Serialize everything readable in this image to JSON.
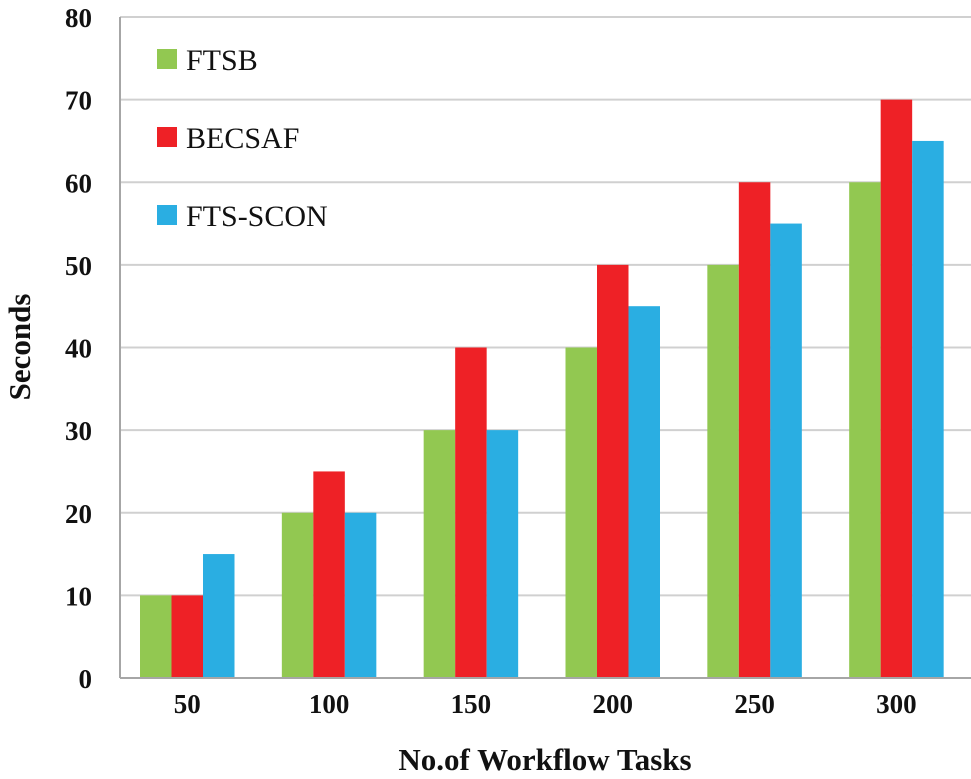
{
  "chart_data": {
    "type": "bar",
    "title": "",
    "xlabel": "No.of Workflow Tasks",
    "ylabel": "Seconds",
    "categories": [
      "50",
      "100",
      "150",
      "200",
      "250",
      "300"
    ],
    "ylim": [
      0,
      80
    ],
    "yticks": [
      "0",
      "10",
      "20",
      "30",
      "40",
      "50",
      "60",
      "70",
      "80"
    ],
    "ytick_values": [
      0,
      10,
      20,
      30,
      40,
      50,
      60,
      70,
      80
    ],
    "grid": true,
    "legend_position": "top-left",
    "series": [
      {
        "name": "FTSB",
        "color": "#92c851",
        "values": [
          10,
          20,
          30,
          40,
          50,
          60
        ]
      },
      {
        "name": "BECSAF",
        "color": "#ee2126",
        "values": [
          10,
          25,
          40,
          50,
          60,
          70
        ]
      },
      {
        "name": "FTS-SCON",
        "color": "#2aaee2",
        "values": [
          15,
          20,
          30,
          45,
          55,
          65
        ]
      }
    ]
  }
}
